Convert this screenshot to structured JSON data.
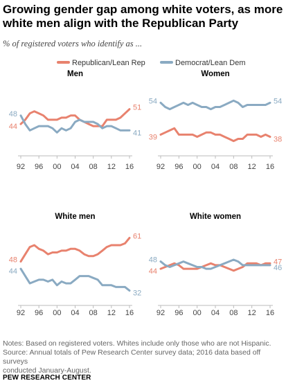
{
  "header": {
    "title": "Growing gender gap among white voters, as more white men align with the Republican Party",
    "subtitle": "% of registered voters who identify as ..."
  },
  "footer": {
    "notes": [
      "Notes: Based on registered voters. Whites include only those who are not Hispanic.",
      "Source: Annual totals of Pew Research Center survey data; 2016 data based off surveys",
      "conducted January-August."
    ],
    "source": "PEW RESEARCH CENTER"
  },
  "colors": {
    "republican": "#e8826e",
    "democrat": "#8aaac2",
    "axis": "#bbbbbb"
  },
  "chart_data": [
    {
      "type": "line",
      "title": "Men",
      "legend": {
        "placement": "top",
        "entries": [
          "Republican/Lean Rep",
          "Democrat/Lean Dem"
        ]
      },
      "x": [
        1992,
        1993,
        1994,
        1995,
        1996,
        1997,
        1998,
        1999,
        2000,
        2001,
        2002,
        2003,
        2004,
        2005,
        2006,
        2007,
        2008,
        2009,
        2010,
        2011,
        2012,
        2013,
        2014,
        2015,
        2016
      ],
      "xticklabels": [
        "92",
        "96",
        "00",
        "04",
        "08",
        "12",
        "16"
      ],
      "ylim": [
        30,
        60
      ],
      "series": [
        {
          "name": "Republican/Lean Rep",
          "values": [
            44,
            46,
            49,
            50,
            49,
            48,
            46,
            46,
            46,
            47,
            47,
            48,
            48,
            46,
            45,
            44,
            43,
            43,
            43,
            46,
            46,
            46,
            47,
            49,
            51
          ]
        },
        {
          "name": "Democrat/Lean Dem",
          "values": [
            48,
            44,
            41,
            42,
            43,
            43,
            43,
            42,
            40,
            42,
            41,
            42,
            45,
            46,
            45,
            45,
            45,
            44,
            42,
            43,
            43,
            42,
            41,
            41,
            41
          ]
        }
      ],
      "end_labels": {
        "start": [
          "44",
          "48"
        ],
        "end": [
          "51",
          "41"
        ]
      }
    },
    {
      "type": "line",
      "title": "Women",
      "x": [
        1992,
        1993,
        1994,
        1995,
        1996,
        1997,
        1998,
        1999,
        2000,
        2001,
        2002,
        2003,
        2004,
        2005,
        2006,
        2007,
        2008,
        2009,
        2010,
        2011,
        2012,
        2013,
        2014,
        2015,
        2016
      ],
      "xticklabels": [
        "92",
        "96",
        "00",
        "04",
        "08",
        "12",
        "16"
      ],
      "ylim": [
        30,
        60
      ],
      "series": [
        {
          "name": "Republican/Lean Rep",
          "values": [
            39,
            40,
            41,
            42,
            39,
            39,
            39,
            39,
            38,
            39,
            40,
            40,
            39,
            39,
            38,
            37,
            36,
            37,
            37,
            39,
            39,
            39,
            38,
            39,
            38
          ]
        },
        {
          "name": "Democrat/Lean Dem",
          "values": [
            54,
            52,
            51,
            52,
            53,
            54,
            53,
            54,
            53,
            52,
            52,
            51,
            52,
            52,
            53,
            54,
            55,
            54,
            52,
            53,
            53,
            53,
            53,
            53,
            54
          ]
        }
      ],
      "end_labels": {
        "start": [
          "39",
          "54"
        ],
        "end": [
          "38",
          "54"
        ]
      }
    },
    {
      "type": "line",
      "title": "White men",
      "x": [
        1992,
        1993,
        1994,
        1995,
        1996,
        1997,
        1998,
        1999,
        2000,
        2001,
        2002,
        2003,
        2004,
        2005,
        2006,
        2007,
        2008,
        2009,
        2010,
        2011,
        2012,
        2013,
        2014,
        2015,
        2016
      ],
      "xticklabels": [
        "92",
        "96",
        "00",
        "04",
        "08",
        "12",
        "16"
      ],
      "ylim": [
        25,
        65
      ],
      "series": [
        {
          "name": "Republican/Lean Rep",
          "values": [
            48,
            52,
            56,
            57,
            55,
            54,
            52,
            53,
            53,
            54,
            54,
            55,
            55,
            54,
            52,
            51,
            51,
            52,
            54,
            56,
            57,
            57,
            57,
            58,
            61
          ]
        },
        {
          "name": "Democrat/Lean Dem",
          "values": [
            44,
            40,
            36,
            37,
            38,
            38,
            37,
            38,
            35,
            37,
            36,
            36,
            38,
            40,
            40,
            40,
            39,
            38,
            35,
            35,
            35,
            34,
            34,
            34,
            32
          ]
        }
      ],
      "end_labels": {
        "start": [
          "48",
          "44"
        ],
        "end": [
          "61",
          "32"
        ]
      }
    },
    {
      "type": "line",
      "title": "White women",
      "x": [
        1992,
        1993,
        1994,
        1995,
        1996,
        1997,
        1998,
        1999,
        2000,
        2001,
        2002,
        2003,
        2004,
        2005,
        2006,
        2007,
        2008,
        2009,
        2010,
        2011,
        2012,
        2013,
        2014,
        2015,
        2016
      ],
      "xticklabels": [
        "92",
        "96",
        "00",
        "04",
        "08",
        "12",
        "16"
      ],
      "ylim": [
        25,
        65
      ],
      "series": [
        {
          "name": "Republican/Lean Rep",
          "values": [
            44,
            45,
            46,
            47,
            46,
            44,
            44,
            44,
            44,
            45,
            46,
            47,
            46,
            46,
            45,
            44,
            43,
            44,
            45,
            47,
            47,
            47,
            46,
            47,
            47
          ]
        },
        {
          "name": "Democrat/Lean Dem",
          "values": [
            48,
            46,
            45,
            46,
            47,
            48,
            47,
            46,
            45,
            45,
            44,
            44,
            45,
            46,
            47,
            48,
            49,
            48,
            46,
            46,
            46,
            46,
            46,
            46,
            46
          ]
        }
      ],
      "end_labels": {
        "start": [
          "44",
          "48"
        ],
        "end": [
          "47",
          "46"
        ]
      }
    }
  ]
}
